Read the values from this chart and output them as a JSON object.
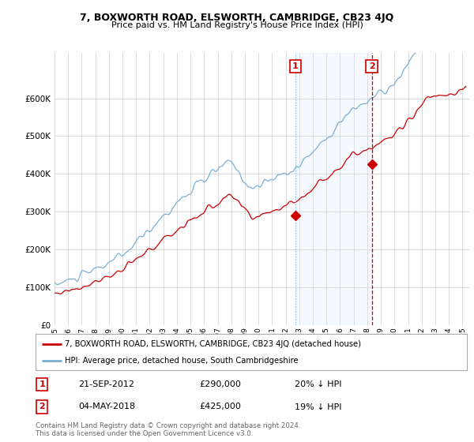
{
  "title": "7, BOXWORTH ROAD, ELSWORTH, CAMBRIDGE, CB23 4JQ",
  "subtitle": "Price paid vs. HM Land Registry's House Price Index (HPI)",
  "ylim": [
    0,
    720000
  ],
  "xlim_start": 1995.0,
  "xlim_end": 2025.5,
  "hpi_color": "#7aafd4",
  "price_color": "#cc0000",
  "shade_color": "#ddeeff",
  "marker1_date": 2012.72,
  "marker1_price": 290000,
  "marker1_label": "21-SEP-2012",
  "marker1_amount": "£290,000",
  "marker1_pct": "20% ↓ HPI",
  "marker2_date": 2018.33,
  "marker2_price": 425000,
  "marker2_label": "04-MAY-2018",
  "marker2_amount": "£425,000",
  "marker2_pct": "19% ↓ HPI",
  "legend_line1": "7, BOXWORTH ROAD, ELSWORTH, CAMBRIDGE, CB23 4JQ (detached house)",
  "legend_line2": "HPI: Average price, detached house, South Cambridgeshire",
  "footnote": "Contains HM Land Registry data © Crown copyright and database right 2024.\nThis data is licensed under the Open Government Licence v3.0.",
  "background_color": "#ffffff",
  "plot_bg_color": "#ffffff",
  "grid_color": "#cccccc"
}
